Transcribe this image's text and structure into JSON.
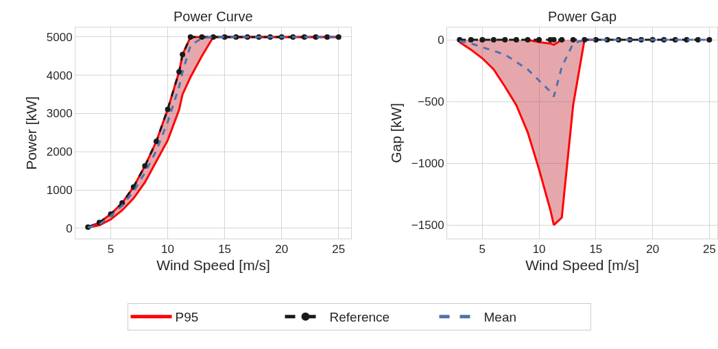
{
  "chart_data": [
    {
      "type": "line",
      "title": "Power Curve",
      "xlabel": "Wind Speed [m/s]",
      "ylabel": "Power [kW]",
      "x": [
        3,
        4,
        5,
        6,
        7,
        8,
        9,
        10,
        11,
        11.3,
        12,
        13,
        14,
        15,
        16,
        17,
        18,
        19,
        20,
        21,
        22,
        23,
        24,
        25
      ],
      "series": [
        {
          "name": "P95",
          "color": "#ff0000",
          "line_style": "solid",
          "marker": "none",
          "values": [
            20,
            80,
            230,
            470,
            780,
            1200,
            1750,
            2300,
            3100,
            3500,
            3950,
            4500,
            5000,
            5000,
            5000,
            5000,
            5000,
            5000,
            5000,
            5000,
            5000,
            5000,
            5000,
            5000
          ]
        },
        {
          "color": "#ff0000",
          "line_style": "solid",
          "marker": "none",
          "values": [
            30,
            150,
            370,
            660,
            1080,
            1630,
            2270,
            3110,
            4090,
            4540,
            5000,
            5000,
            5000,
            5000,
            5000,
            5000,
            5000,
            5000,
            5000,
            5000,
            5000,
            5000,
            5000,
            5000
          ]
        },
        {
          "name": "Reference",
          "color": "#1a1a1a",
          "line_style": "dashed",
          "marker": "circle",
          "values": [
            30,
            150,
            370,
            660,
            1080,
            1630,
            2270,
            3110,
            4090,
            4540,
            5000,
            5000,
            5000,
            5000,
            5000,
            5000,
            5000,
            5000,
            5000,
            5000,
            5000,
            5000,
            5000,
            5000
          ]
        },
        {
          "name": "Mean",
          "color": "#4c72b0",
          "line_style": "dashed",
          "marker": "none",
          "values": [
            20,
            100,
            320,
            590,
            960,
            1450,
            2030,
            2780,
            3700,
            4080,
            4780,
            4970,
            5000,
            5000,
            5000,
            5000,
            5000,
            5000,
            5000,
            5000,
            5000,
            5000,
            5000,
            5000
          ],
          "lower": [
            20,
            80,
            230,
            470,
            780,
            1200,
            1750,
            2300,
            3100,
            3500,
            3950,
            4500,
            5000,
            5000,
            5000,
            5000,
            5000,
            5000,
            5000,
            5000,
            5000,
            5000,
            5000,
            5000
          ],
          "upper": [
            30,
            150,
            370,
            660,
            1080,
            1630,
            2270,
            3110,
            4090,
            4540,
            5000,
            5000,
            5000,
            5000,
            5000,
            5000,
            5000,
            5000,
            5000,
            5000,
            5000,
            5000,
            5000,
            5000
          ]
        }
      ],
      "xlim": [
        1.9,
        26.1
      ],
      "xticks": [
        5,
        10,
        15,
        20,
        25
      ],
      "ylim": [
        -270,
        5250
      ],
      "yticks": [
        0,
        1000,
        2000,
        3000,
        4000,
        5000
      ],
      "grid": true,
      "legend": "bottom"
    },
    {
      "type": "line",
      "title": "Power Gap",
      "xlabel": "Wind Speed [m/s]",
      "ylabel": "Gap [kW]",
      "x": [
        3,
        4,
        5,
        6,
        7,
        8,
        9,
        10,
        11,
        11.3,
        12,
        13,
        14,
        15,
        16,
        17,
        18,
        19,
        20,
        21,
        22,
        23,
        24,
        25
      ],
      "series": [
        {
          "name": "P95",
          "color": "#ff0000",
          "line_style": "solid",
          "marker": "none",
          "values": [
            -20,
            -80,
            -150,
            -240,
            -380,
            -530,
            -750,
            -1050,
            -1380,
            -1500,
            -1440,
            -530,
            0,
            0,
            null,
            null,
            null,
            null,
            null,
            null,
            null,
            null,
            null,
            null
          ]
        },
        {
          "color": "#ff0000",
          "line_style": "solid",
          "marker": "none",
          "values": [
            null,
            null,
            null,
            null,
            null,
            null,
            0,
            -20,
            -30,
            -40,
            0,
            null,
            null,
            null,
            null,
            null,
            null,
            null,
            null,
            null,
            null,
            null,
            null,
            null
          ]
        },
        {
          "name": "Reference",
          "color": "#1a1a1a",
          "line_style": "dashed",
          "marker": "circle",
          "values": [
            0,
            0,
            0,
            0,
            0,
            0,
            0,
            0,
            0,
            0,
            0,
            0,
            0,
            0,
            0,
            0,
            0,
            0,
            0,
            0,
            0,
            0,
            0,
            0
          ]
        },
        {
          "name": "Mean",
          "color": "#4c72b0",
          "line_style": "dashed",
          "marker": "none",
          "values": [
            -10,
            -30,
            -60,
            -90,
            -120,
            -180,
            -240,
            -330,
            -420,
            -460,
            -220,
            -30,
            0,
            0,
            0,
            0,
            0,
            0,
            0,
            0,
            0,
            0,
            0,
            0
          ],
          "lower": [
            -20,
            -80,
            -150,
            -240,
            -380,
            -530,
            -750,
            -1050,
            -1380,
            -1500,
            -1440,
            -530,
            0,
            0,
            0,
            0,
            0,
            0,
            0,
            0,
            0,
            0,
            0,
            0
          ],
          "upper": [
            0,
            0,
            0,
            0,
            0,
            0,
            0,
            -20,
            -30,
            -40,
            0,
            0,
            0,
            0,
            0,
            0,
            0,
            0,
            0,
            0,
            0,
            0,
            0,
            0
          ]
        }
      ],
      "xlim": [
        1.9,
        25.7
      ],
      "xticks": [
        5,
        10,
        15,
        20,
        25
      ],
      "ylim": [
        -1610,
        100
      ],
      "yticks": [
        0,
        {
          "value": -500,
          "label": "−500"
        },
        {
          "value": -1000,
          "label": "−1000"
        },
        {
          "value": -1500,
          "label": "−1500"
        }
      ],
      "grid": true,
      "legend": "bottom"
    }
  ]
}
